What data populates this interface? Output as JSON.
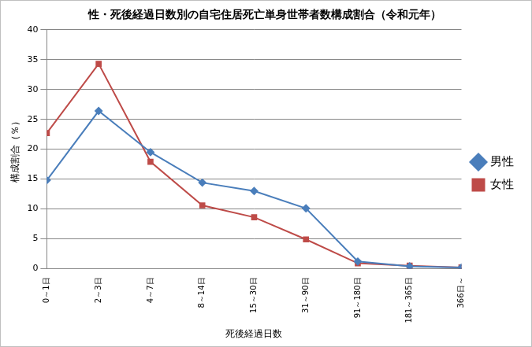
{
  "chart_data": {
    "type": "line",
    "title": "性・死後経過日数別の自宅住居死亡単身世帯者数構成割合（令和元年）",
    "x_label": "死後経過日数",
    "y_label": "構成割合（％）",
    "categories": [
      "0～1日",
      "2～3日",
      "4～7日",
      "8～14日",
      "15～30日",
      "31～90日",
      "91～180日",
      "181～365日",
      "366日～"
    ],
    "series": [
      {
        "name": "男性",
        "color": "#4a7ebb",
        "marker": "diamond",
        "line_style": "solid",
        "values": [
          14.8,
          26.4,
          19.5,
          14.4,
          13.0,
          10.1,
          1.2,
          0.4,
          0.2
        ]
      },
      {
        "name": "女性",
        "color": "#be4b48",
        "marker": "square",
        "line_style": "solid",
        "values": [
          22.7,
          34.3,
          17.9,
          10.6,
          8.6,
          4.9,
          0.9,
          0.5,
          0.2
        ]
      }
    ],
    "ylim": [
      0,
      40
    ],
    "yticks": [
      0,
      5,
      10,
      15,
      20,
      25,
      30,
      35,
      40
    ],
    "grid": true,
    "legend": "right"
  }
}
